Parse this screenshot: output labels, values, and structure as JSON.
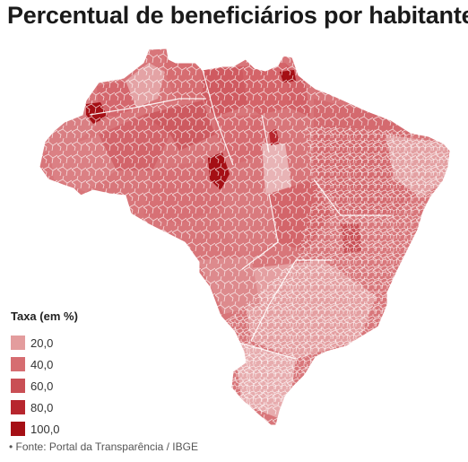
{
  "title": "Percentual de beneficiários por habitantes",
  "legend": {
    "title": "Taxa (em %)",
    "items": [
      {
        "label": "20,0",
        "color": "#e39c9d"
      },
      {
        "label": "40,0",
        "color": "#d66d71"
      },
      {
        "label": "60,0",
        "color": "#c94f55"
      },
      {
        "label": "80,0",
        "color": "#b7262e"
      },
      {
        "label": "100,0",
        "color": "#a50f15"
      }
    ]
  },
  "source": "• Fonte: Portal da Transparência / IBGE",
  "map": {
    "base_color": "#d66d71",
    "border_color": "#ffffff"
  }
}
